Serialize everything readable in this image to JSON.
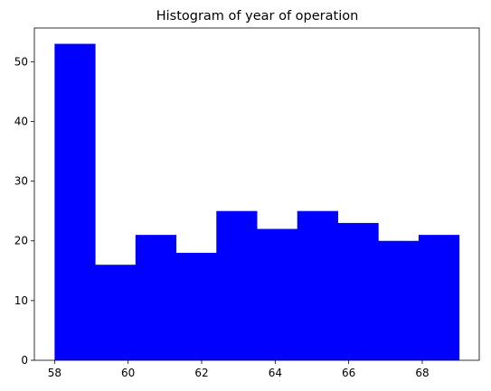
{
  "chart_data": {
    "type": "bar",
    "title": "Histogram of year of operation",
    "xlabel": "",
    "ylabel": "",
    "bin_edges": [
      58,
      59.1,
      60.2,
      61.3,
      62.4,
      63.5,
      64.6,
      65.7,
      66.8,
      67.9,
      69
    ],
    "values": [
      53,
      16,
      21,
      18,
      25,
      22,
      25,
      23,
      20,
      21
    ],
    "xlim": [
      57.45,
      69.55
    ],
    "ylim": [
      0,
      55.65
    ],
    "x_ticks": [
      58,
      60,
      62,
      64,
      66,
      68
    ],
    "y_ticks": [
      0,
      10,
      20,
      30,
      40,
      50
    ],
    "bar_color": "#0000ff",
    "grid": false,
    "legend": "none"
  }
}
